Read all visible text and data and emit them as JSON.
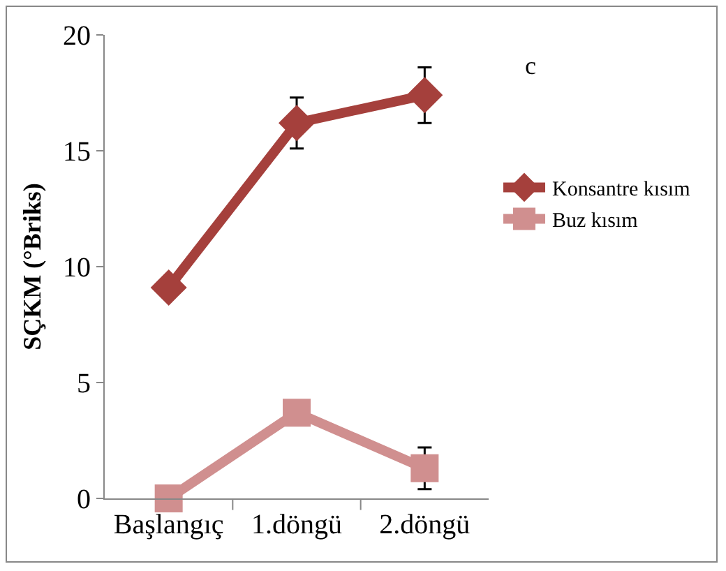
{
  "chart_data": {
    "type": "line",
    "ylabel": "SÇKM (°Briks)",
    "categories": [
      "Başlangıç",
      "1.döngü",
      "2.döngü"
    ],
    "series": [
      {
        "name": "Konsantre kısım",
        "color": "#a5403c",
        "values": [
          9.1,
          16.2,
          17.4
        ],
        "errors": [
          null,
          1.1,
          1.2
        ],
        "marker": "diamond"
      },
      {
        "name": "Buz kısım",
        "color": "#d08f8f",
        "values": [
          0,
          3.7,
          1.3
        ],
        "errors": [
          null,
          null,
          0.9
        ],
        "marker": "square"
      }
    ],
    "ylim": [
      0,
      20
    ],
    "yticks": [
      0,
      5,
      10,
      15,
      20
    ],
    "grid": false,
    "legend": "right",
    "annotations": [
      "c"
    ]
  }
}
